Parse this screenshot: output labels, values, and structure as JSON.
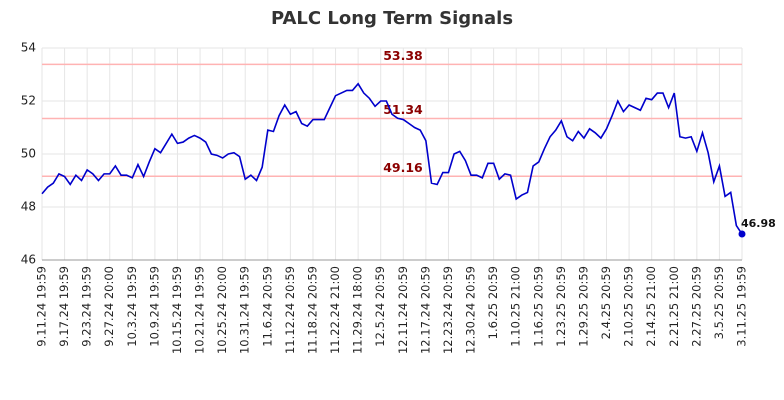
{
  "chart_data": {
    "type": "line",
    "title": "PALC Long Term Signals",
    "categories": [
      "9.11.24 19:59",
      null,
      null,
      null,
      "9.17.24 19:59",
      null,
      null,
      null,
      "9.23.24 19:59",
      null,
      null,
      null,
      "9.27.24 20:00",
      null,
      null,
      null,
      "10.3.24 19:59",
      null,
      null,
      null,
      "10.9.24 19:59",
      null,
      null,
      null,
      "10.15.24 19:59",
      null,
      null,
      null,
      "10.21.24 19:59",
      null,
      null,
      null,
      "10.25.24 20:00",
      null,
      null,
      null,
      "10.31.24 19:59",
      null,
      null,
      null,
      "11.6.24 20:59",
      null,
      null,
      null,
      "11.12.24 20:59",
      null,
      null,
      null,
      "11.18.24 20:59",
      null,
      null,
      null,
      "11.22.24 21:00",
      null,
      null,
      null,
      "11.29.24 18:00",
      null,
      null,
      null,
      "12.5.24 20:59",
      null,
      null,
      null,
      "12.11.24 20:59",
      null,
      null,
      null,
      "12.17.24 20:59",
      null,
      null,
      null,
      "12.23.24 20:59",
      null,
      null,
      null,
      "12.30.24 20:59",
      null,
      null,
      null,
      "1.6.25 20:59",
      null,
      null,
      null,
      "1.10.25 21:00",
      null,
      null,
      null,
      "1.16.25 20:59",
      null,
      null,
      null,
      "1.23.25 20:59",
      null,
      null,
      null,
      "1.29.25 20:59",
      null,
      null,
      null,
      "2.4.25 20:59",
      null,
      null,
      null,
      "2.10.25 20:59",
      null,
      null,
      null,
      "2.14.25 21:00",
      null,
      null,
      null,
      "2.21.25 21:00",
      null,
      null,
      null,
      "2.27.25 20:59",
      null,
      null,
      null,
      "3.5.25 20:59",
      null,
      null,
      null,
      "3.11.25 19:59"
    ],
    "series": [
      {
        "name": "PALC",
        "color": "#0000cc",
        "values": [
          48.5,
          48.75,
          48.9,
          49.25,
          49.15,
          48.85,
          49.2,
          49.0,
          49.4,
          49.25,
          49.0,
          49.25,
          49.25,
          49.55,
          49.2,
          49.2,
          49.1,
          49.6,
          49.15,
          49.7,
          50.2,
          50.05,
          50.4,
          50.75,
          50.4,
          50.45,
          50.6,
          50.7,
          50.6,
          50.45,
          50.0,
          49.95,
          49.85,
          50.0,
          50.05,
          49.9,
          49.05,
          49.2,
          49.0,
          49.5,
          50.9,
          50.85,
          51.45,
          51.85,
          51.5,
          51.6,
          51.15,
          51.05,
          51.3,
          51.3,
          51.3,
          51.75,
          52.2,
          52.3,
          52.4,
          52.4,
          52.65,
          52.3,
          52.1,
          51.8,
          52.0,
          52.0,
          51.5,
          51.35,
          51.3,
          51.15,
          51.0,
          50.9,
          50.5,
          48.9,
          48.85,
          49.3,
          49.3,
          50.0,
          50.1,
          49.75,
          49.2,
          49.2,
          49.1,
          49.65,
          49.65,
          49.05,
          49.25,
          49.2,
          48.3,
          48.45,
          48.55,
          49.55,
          49.7,
          50.2,
          50.65,
          50.9,
          51.25,
          50.65,
          50.5,
          50.85,
          50.6,
          50.95,
          50.8,
          50.6,
          50.95,
          51.45,
          52.0,
          51.6,
          51.85,
          51.75,
          51.65,
          52.1,
          52.05,
          52.3,
          52.3,
          51.75,
          52.3,
          50.65,
          50.6,
          50.65,
          50.1,
          50.8,
          50.05,
          48.95,
          49.55,
          48.4,
          48.55,
          47.3,
          46.98
        ]
      }
    ],
    "hlines": [
      53.38,
      51.34,
      49.16
    ],
    "hline_color": "#ffb3b3",
    "hline_label_color": "#8b0000",
    "ylim": [
      46,
      54
    ],
    "yticks": [
      46,
      48,
      50,
      52,
      54
    ],
    "grid": true
  }
}
